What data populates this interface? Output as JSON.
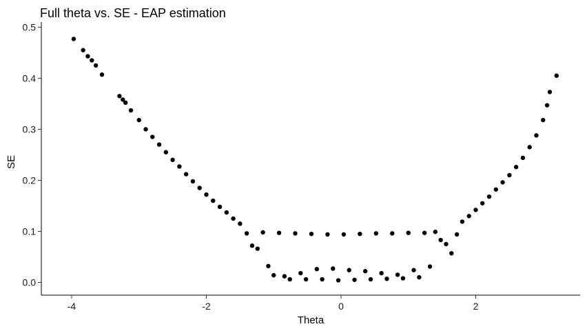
{
  "chart_data": {
    "type": "scatter",
    "title": "Full theta vs. SE - EAP estimation",
    "xlabel": "Theta",
    "ylabel": "SE",
    "xlim": [
      -4.45,
      3.55
    ],
    "ylim": [
      -0.025,
      0.51
    ],
    "xticks": [
      -4,
      -2,
      0,
      2
    ],
    "xtick_labels": [
      "-4",
      "-2",
      "0",
      "2"
    ],
    "yticks": [
      0.0,
      0.1,
      0.2,
      0.3,
      0.4,
      0.5
    ],
    "ytick_labels": [
      "0.0",
      "0.1",
      "0.2",
      "0.3",
      "0.4",
      "0.5"
    ],
    "grid": false,
    "legend": "none",
    "point_color": "#000000",
    "series": [
      {
        "x": [
          -3.97,
          -3.83,
          -3.76,
          -3.7,
          -3.64,
          -3.55,
          -3.29,
          -3.24,
          -3.2,
          -3.12,
          -3.0,
          -2.9,
          -2.8,
          -2.7,
          -2.6,
          -2.5,
          -2.4,
          -2.3,
          -2.2,
          -2.1,
          -2.0,
          -1.9,
          -1.8,
          -1.7,
          -1.6,
          -1.5,
          -1.4,
          -1.32,
          -1.24,
          -1.16,
          -1.08,
          -1.0,
          -0.92,
          -0.84,
          -0.76,
          -0.68,
          -0.6,
          -0.52,
          -0.44,
          -0.36,
          -0.28,
          -0.2,
          -0.12,
          -0.04,
          0.04,
          0.12,
          0.2,
          0.28,
          0.36,
          0.44,
          0.52,
          0.6,
          0.68,
          0.76,
          0.84,
          0.92,
          1.0,
          1.08,
          1.16,
          1.24,
          1.32,
          1.4,
          1.48,
          1.56,
          1.64,
          1.72,
          1.8,
          1.9,
          2.0,
          2.1,
          2.2,
          2.3,
          2.4,
          2.5,
          2.6,
          2.7,
          2.8,
          2.9,
          3.0,
          3.06,
          3.1,
          3.2
        ],
        "y": [
          0.477,
          0.455,
          0.443,
          0.435,
          0.425,
          0.407,
          0.365,
          0.358,
          0.352,
          0.337,
          0.318,
          0.3,
          0.285,
          0.27,
          0.255,
          0.24,
          0.227,
          0.212,
          0.198,
          0.185,
          0.172,
          0.16,
          0.148,
          0.137,
          0.125,
          0.115,
          0.096,
          0.072,
          0.066,
          0.098,
          0.032,
          0.014,
          0.097,
          0.012,
          0.006,
          0.096,
          0.018,
          0.006,
          0.095,
          0.026,
          0.006,
          0.094,
          0.027,
          0.004,
          0.094,
          0.024,
          0.005,
          0.095,
          0.022,
          0.006,
          0.096,
          0.018,
          0.007,
          0.096,
          0.015,
          0.008,
          0.097,
          0.024,
          0.01,
          0.097,
          0.031,
          0.099,
          0.083,
          0.075,
          0.057,
          0.094,
          0.119,
          0.13,
          0.142,
          0.155,
          0.168,
          0.182,
          0.196,
          0.21,
          0.226,
          0.244,
          0.265,
          0.288,
          0.318,
          0.347,
          0.373,
          0.405
        ]
      }
    ]
  }
}
